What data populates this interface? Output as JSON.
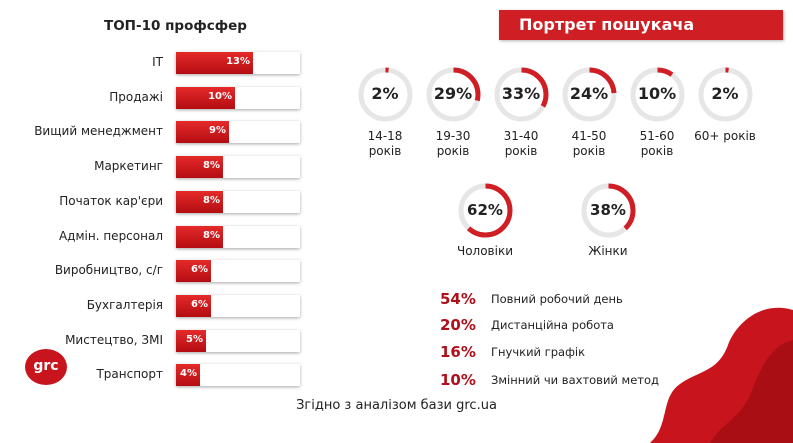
{
  "left_title": "ТОП-10 профсфер",
  "banner_title": "Портрет пошукача",
  "source_text": "Згідно з аналізом бази grc.ua",
  "logo_text": "grc",
  "colors": {
    "accent": "#cf1f25",
    "dark_accent": "#b30d12",
    "track": "#e6e6e6"
  },
  "chart_data": [
    {
      "type": "bar",
      "title": "ТОП-10 профсфер",
      "categories": [
        "IT",
        "Продажі",
        "Вищий менеджмент",
        "Маркетинг",
        "Початок кар'єри",
        "Адмін. персонал",
        "Виробництво, с/г",
        "Бухгалтерія",
        "Мистецтво, ЗМІ",
        "Транспорт"
      ],
      "values": [
        13,
        10,
        9,
        8,
        8,
        8,
        6,
        6,
        5,
        4
      ],
      "value_labels": [
        "13%",
        "10%",
        "9%",
        "8%",
        "8%",
        "8%",
        "6%",
        "6%",
        "5%",
        "4%"
      ]
    },
    {
      "type": "pie",
      "title": "Портрет пошукача",
      "categories": [
        "14-18 років",
        "19-30 років",
        "31-40 років",
        "41-50 років",
        "51-60 років",
        "60+ років"
      ],
      "values": [
        2,
        29,
        33,
        24,
        10,
        2
      ],
      "value_labels": [
        "2%",
        "29%",
        "33%",
        "24%",
        "10%",
        "2%"
      ]
    },
    {
      "type": "pie",
      "categories": [
        "Чоловіки",
        "Жінки"
      ],
      "values": [
        62,
        38
      ],
      "value_labels": [
        "62%",
        "38%"
      ]
    },
    {
      "type": "table",
      "rows": [
        {
          "value": 54,
          "value_label": "54%",
          "label": "Повний робочий день"
        },
        {
          "value": 20,
          "value_label": "20%",
          "label": "Дистанційна робота"
        },
        {
          "value": 16,
          "value_label": "16%",
          "label": "Гнучкий графік"
        },
        {
          "value": 10,
          "value_label": "10%",
          "label": "Змінний чи вахтовий метод"
        }
      ]
    }
  ]
}
